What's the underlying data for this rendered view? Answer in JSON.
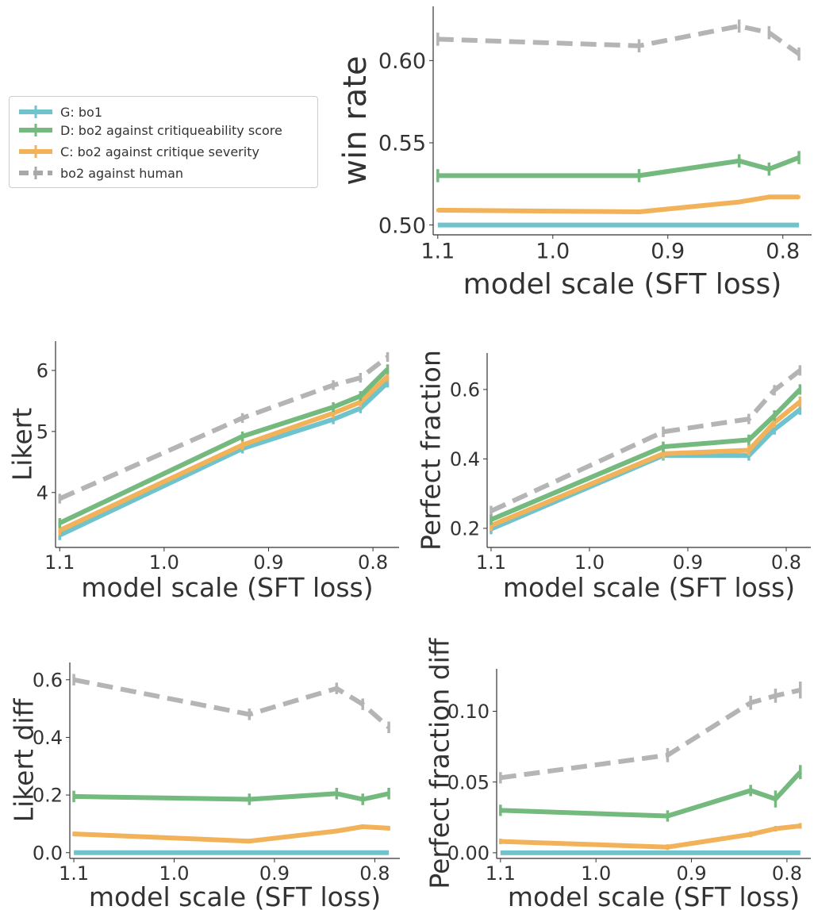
{
  "colors": {
    "G": "#6ec3cc",
    "D": "#74b97e",
    "C": "#f2b25a",
    "H": "#a8a8a8"
  },
  "legend": {
    "items": [
      {
        "key": "G",
        "label": "G: bo1",
        "dashed": false
      },
      {
        "key": "D",
        "label": "D: bo2 against critiqueability score",
        "dashed": false
      },
      {
        "key": "C",
        "label": "C: bo2 against critique severity",
        "dashed": false
      },
      {
        "key": "H",
        "label": "bo2 against human",
        "dashed": true
      }
    ]
  },
  "chart_data": [
    {
      "id": "win-rate",
      "type": "line",
      "xlabel": "model scale (SFT loss)",
      "ylabel": "win rate",
      "x_reversed": true,
      "xlim": [
        1.104,
        0.775
      ],
      "ylim": [
        0.494,
        0.633
      ],
      "xticks": [
        1.1,
        1.0,
        0.9,
        0.8
      ],
      "xtick_labels": [
        "1.1",
        "1.0",
        "0.9",
        "0.8"
      ],
      "yticks": [
        0.5,
        0.55,
        0.6
      ],
      "ytick_labels": [
        "0.50",
        "0.55",
        "0.60"
      ],
      "x": [
        1.1,
        0.925,
        0.838,
        0.812,
        0.786
      ],
      "series": [
        {
          "key": "G",
          "values": [
            0.5,
            0.5,
            0.5,
            0.5,
            0.5
          ],
          "err": [
            0,
            0,
            0,
            0,
            0
          ]
        },
        {
          "key": "D",
          "values": [
            0.53,
            0.53,
            0.539,
            0.534,
            0.541
          ],
          "err": [
            0.004,
            0.004,
            0.004,
            0.004,
            0.004
          ]
        },
        {
          "key": "C",
          "values": [
            0.509,
            0.508,
            0.514,
            0.517,
            0.517
          ],
          "err": [
            0.001,
            0.001,
            0.001,
            0.001,
            0.001
          ]
        },
        {
          "key": "H",
          "values": [
            0.613,
            0.609,
            0.621,
            0.617,
            0.604
          ],
          "err": [
            0.004,
            0.004,
            0.004,
            0.004,
            0.004
          ]
        }
      ]
    },
    {
      "id": "likert",
      "type": "line",
      "xlabel": "model scale (SFT loss)",
      "ylabel": "Likert",
      "x_reversed": true,
      "xlim": [
        1.104,
        0.775
      ],
      "ylim": [
        3.1,
        6.48
      ],
      "xticks": [
        1.1,
        1.0,
        0.9,
        0.8
      ],
      "xtick_labels": [
        "1.1",
        "1.0",
        "0.9",
        "0.8"
      ],
      "yticks": [
        4,
        5,
        6
      ],
      "ytick_labels": [
        "4",
        "5",
        "6"
      ],
      "x": [
        1.1,
        0.925,
        0.838,
        0.812,
        0.786
      ],
      "series": [
        {
          "key": "G",
          "values": [
            3.3,
            4.72,
            5.2,
            5.38,
            5.8
          ],
          "err": [
            0.08,
            0.08,
            0.08,
            0.08,
            0.08
          ]
        },
        {
          "key": "C",
          "values": [
            3.38,
            4.78,
            5.3,
            5.48,
            5.9
          ],
          "err": [
            0.08,
            0.08,
            0.08,
            0.08,
            0.08
          ]
        },
        {
          "key": "D",
          "values": [
            3.5,
            4.92,
            5.4,
            5.58,
            6.02
          ],
          "err": [
            0.08,
            0.08,
            0.08,
            0.08,
            0.08
          ]
        },
        {
          "key": "H",
          "values": [
            3.9,
            5.22,
            5.76,
            5.88,
            6.22
          ],
          "err": [
            0.08,
            0.08,
            0.08,
            0.08,
            0.08
          ]
        }
      ]
    },
    {
      "id": "perfect-fraction",
      "type": "line",
      "xlabel": "model scale (SFT loss)",
      "ylabel": "Perfect fraction",
      "x_reversed": true,
      "xlim": [
        1.104,
        0.775
      ],
      "ylim": [
        0.145,
        0.705
      ],
      "xticks": [
        1.1,
        1.0,
        0.9,
        0.8
      ],
      "xtick_labels": [
        "1.1",
        "1.0",
        "0.9",
        "0.8"
      ],
      "yticks": [
        0.2,
        0.4,
        0.6
      ],
      "ytick_labels": [
        "0.2",
        "0.4",
        "0.6"
      ],
      "x": [
        1.1,
        0.925,
        0.838,
        0.812,
        0.786
      ],
      "series": [
        {
          "key": "G",
          "values": [
            0.198,
            0.41,
            0.41,
            0.485,
            0.542
          ],
          "err": [
            0.015,
            0.015,
            0.015,
            0.015,
            0.015
          ]
        },
        {
          "key": "C",
          "values": [
            0.208,
            0.415,
            0.425,
            0.505,
            0.565
          ],
          "err": [
            0.015,
            0.015,
            0.015,
            0.015,
            0.015
          ]
        },
        {
          "key": "D",
          "values": [
            0.225,
            0.435,
            0.455,
            0.525,
            0.6
          ],
          "err": [
            0.015,
            0.015,
            0.015,
            0.015,
            0.015
          ]
        },
        {
          "key": "H",
          "values": [
            0.25,
            0.478,
            0.515,
            0.598,
            0.655
          ],
          "err": [
            0.015,
            0.015,
            0.015,
            0.015,
            0.015
          ]
        }
      ]
    },
    {
      "id": "likert-diff",
      "type": "line",
      "xlabel": "model scale (SFT loss)",
      "ylabel": "Likert diff",
      "x_reversed": true,
      "xlim": [
        1.104,
        0.775
      ],
      "ylim": [
        -0.02,
        0.66
      ],
      "xticks": [
        1.1,
        1.0,
        0.9,
        0.8
      ],
      "xtick_labels": [
        "1.1",
        "1.0",
        "0.9",
        "0.8"
      ],
      "yticks": [
        0.0,
        0.2,
        0.4,
        0.6
      ],
      "ytick_labels": [
        "0.0",
        "0.2",
        "0.4",
        "0.6"
      ],
      "x": [
        1.1,
        0.925,
        0.838,
        0.812,
        0.786
      ],
      "series": [
        {
          "key": "G",
          "values": [
            0,
            0,
            0,
            0,
            0
          ],
          "err": [
            0,
            0,
            0,
            0,
            0
          ]
        },
        {
          "key": "C",
          "values": [
            0.065,
            0.04,
            0.075,
            0.09,
            0.085
          ],
          "err": [
            0.008,
            0.008,
            0.008,
            0.008,
            0.008
          ]
        },
        {
          "key": "D",
          "values": [
            0.195,
            0.185,
            0.205,
            0.185,
            0.205
          ],
          "err": [
            0.02,
            0.02,
            0.02,
            0.02,
            0.02
          ]
        },
        {
          "key": "H",
          "values": [
            0.6,
            0.48,
            0.57,
            0.515,
            0.435
          ],
          "err": [
            0.02,
            0.02,
            0.02,
            0.02,
            0.02
          ]
        }
      ]
    },
    {
      "id": "perfect-fraction-diff",
      "type": "line",
      "xlabel": "model scale (SFT loss)",
      "ylabel": "Perfect fraction diff",
      "x_reversed": true,
      "xlim": [
        1.104,
        0.775
      ],
      "ylim": [
        -0.004,
        0.13
      ],
      "xticks": [
        1.1,
        1.0,
        0.9,
        0.8
      ],
      "xtick_labels": [
        "1.1",
        "1.0",
        "0.9",
        "0.8"
      ],
      "yticks": [
        0.0,
        0.05,
        0.1
      ],
      "ytick_labels": [
        "0.00",
        "0.05",
        "0.10"
      ],
      "x": [
        1.1,
        0.925,
        0.838,
        0.812,
        0.786
      ],
      "series": [
        {
          "key": "G",
          "values": [
            0,
            0,
            0,
            0,
            0
          ],
          "err": [
            0,
            0,
            0,
            0,
            0
          ]
        },
        {
          "key": "C",
          "values": [
            0.008,
            0.004,
            0.013,
            0.017,
            0.019
          ],
          "err": [
            0.002,
            0.002,
            0.002,
            0.002,
            0.002
          ]
        },
        {
          "key": "D",
          "values": [
            0.03,
            0.026,
            0.044,
            0.038,
            0.057
          ],
          "err": [
            0.004,
            0.004,
            0.004,
            0.006,
            0.005
          ]
        },
        {
          "key": "H",
          "values": [
            0.053,
            0.069,
            0.106,
            0.111,
            0.115
          ],
          "err": [
            0.004,
            0.005,
            0.005,
            0.005,
            0.006
          ]
        }
      ]
    }
  ]
}
